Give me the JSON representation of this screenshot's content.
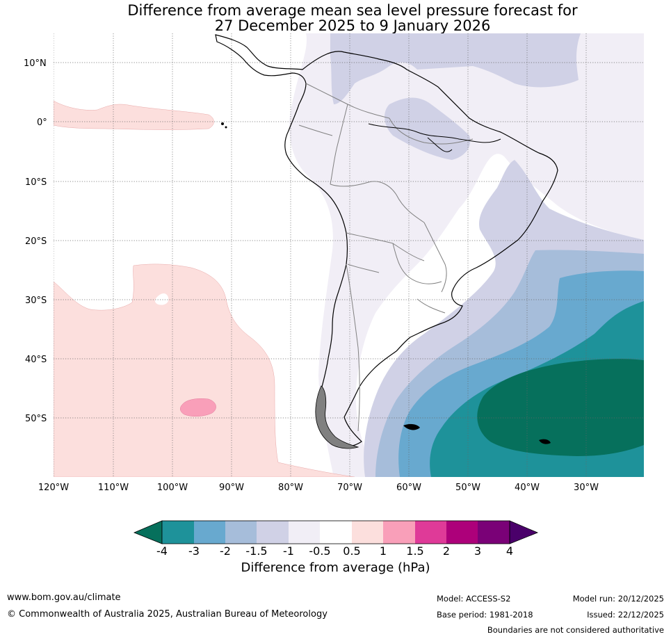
{
  "title": {
    "line1": "Difference from average mean sea level pressure forecast for",
    "line2": "27 December 2025 to 9 January 2026"
  },
  "map": {
    "region": "South America",
    "lat_labels": [
      "10°N",
      "0°",
      "10°S",
      "20°S",
      "30°S",
      "40°S",
      "50°S"
    ],
    "lon_labels": [
      "120°W",
      "110°W",
      "100°W",
      "90°W",
      "80°W",
      "70°W",
      "60°W",
      "50°W",
      "40°W",
      "30°W"
    ]
  },
  "legend": {
    "title": "Difference from average (hPa)",
    "ticks": [
      "-4",
      "-3",
      "-2",
      "-1.5",
      "-1",
      "-0.5",
      "0.5",
      "1",
      "1.5",
      "2",
      "3",
      "4"
    ],
    "colors": {
      "lt_minus4": "#06705c",
      "minus4_minus3": "#1e929a",
      "minus3_minus2": "#68a9cf",
      "minus2_minus1_5": "#a6bdda",
      "minus1_5_minus1": "#d0d1e6",
      "minus1_minus0_5": "#f1eef6",
      "neutral": "#ffffff",
      "p0_5_1": "#fcdfdd",
      "p1_1_5": "#f99fb9",
      "p1_5_2": "#df3a98",
      "p2_3": "#ad007a",
      "p3_4": "#7a0177",
      "gt_4": "#4a006a"
    }
  },
  "footer": {
    "website": "www.bom.gov.au/climate",
    "copyright": "© Commonwealth of Australia 2025, Australian Bureau of Meteorology",
    "model": "Model: ACCESS-S2",
    "base_period": "Base period: 1981-2018",
    "model_run": "Model run: 20/12/2025",
    "issued": "Issued: 22/12/2025",
    "disclaimer": "Boundaries are not considered authoritative"
  }
}
